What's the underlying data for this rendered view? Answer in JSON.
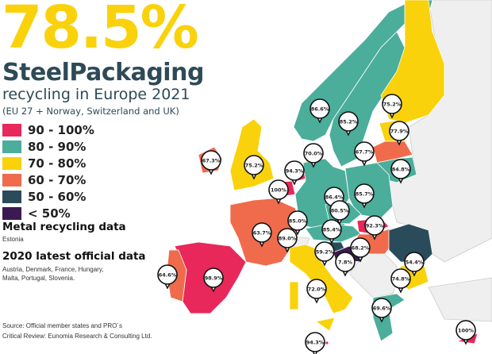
{
  "headline": "78.5%",
  "brand": "SteelPackaging",
  "subtitle": "recycling in Europe 2021",
  "scope": "(EU 27 + Norway, Switzerland and UK)",
  "legend": [
    {
      "label": "90 - 100%",
      "color": "#e8285a"
    },
    {
      "label": "80 - 90%",
      "color": "#4aae9b"
    },
    {
      "label": "70 - 80%",
      "color": "#f9d20c"
    },
    {
      "label": "60 - 70%",
      "color": "#ef6b4b"
    },
    {
      "label": "50 - 60%",
      "color": "#2a4b5a"
    },
    {
      "label": "< 50%",
      "color": "#3b1a52"
    }
  ],
  "notes": {
    "metal_title": "Metal recycling data",
    "metal_countries": "Estonia",
    "official_title": "2020 latest official data",
    "official_countries": "Austria, Denmark, France, Hungary, Malta, Portugal, Slovenia."
  },
  "source": {
    "line1": "Source: Official member states and PRO´s",
    "line2": "Critical Review: Eunomia Research & Consulting Ltd."
  },
  "markers": {
    "norway": "86.6%",
    "sweden": "85.2%",
    "finland": "75.2%",
    "estonia": "77.9%",
    "latvia": "67.7%",
    "lithuania": "84.8%",
    "denmark": "70.0%",
    "ireland": "67.3%",
    "uk": "75.2%",
    "netherlands": "94.3%",
    "belgium": "100%",
    "germany": "86.4%",
    "poland": "85.7%",
    "czechia": "80.5%",
    "luxembourg": "85.0%",
    "france": "63.7%",
    "switzerland": "89.0%",
    "austria": "85.4%",
    "slovakia": "92.3%",
    "hungary": "68.2%",
    "slovenia": "59.2%",
    "croatia": "7.8%",
    "romania": "54.4%",
    "bulgaria": "74.8%",
    "portugal": "64.6%",
    "spain": "98.9%",
    "italy": "72.0%",
    "greece": "69.6%",
    "malta": "94.3%",
    "cyprus": "100%"
  }
}
